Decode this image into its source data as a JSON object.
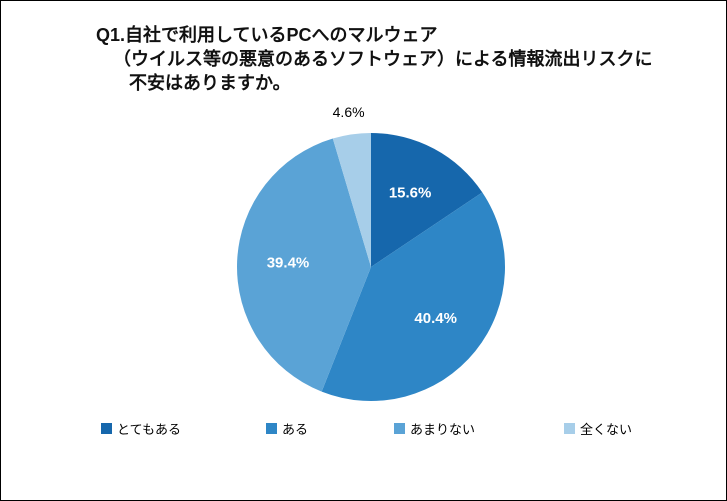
{
  "chart_data": {
    "type": "pie",
    "title": "Q1.自社で利用しているPCへのマルウェア（ウイルス等の悪意のあるソフトウェア）による情報流出リスクに不安はありますか。",
    "title_lines": [
      "Q1.自社で利用しているPCへのマルウェア",
      "（ウイルス等の悪意のあるソフトウェア）による情報流出リスクに",
      "不安はありますか。"
    ],
    "categories": [
      "とてもある",
      "ある",
      "あまりない",
      "全くない"
    ],
    "values": [
      15.6,
      40.4,
      39.4,
      4.6
    ],
    "data_labels": [
      "15.6%",
      "40.4%",
      "39.4%",
      "4.6%"
    ],
    "colors": [
      "#1667AC",
      "#2E86C6",
      "#5AA3D6",
      "#A7CEE9"
    ],
    "start_angle": "top",
    "direction": "clockwise",
    "legend_position": "bottom",
    "label_color_inside": "#ffffff",
    "label_color_outside": "#000000"
  }
}
